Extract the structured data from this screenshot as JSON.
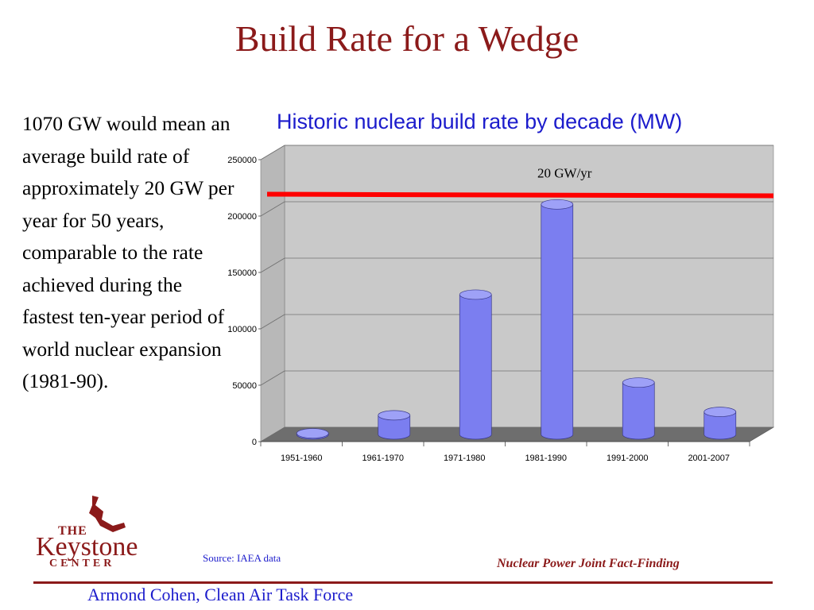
{
  "slide": {
    "title": "Build Rate for a Wedge",
    "body_text": "1070 GW would mean an average build rate of approximately 20 GW per year for 50 years, comparable to the rate achieved during the fastest ten-year period of world nuclear expansion (1981-90).",
    "source": "Source: IAEA data",
    "footer_right": "Nuclear Power Joint Fact-Finding",
    "footer_left": "Armond Cohen, Clean Air Task Force"
  },
  "logo": {
    "the": "THE",
    "name": "Keystone",
    "center": "CENTER"
  },
  "colors": {
    "title": "#8b1a1a",
    "accent_blue": "#1c1ccc",
    "bar": "#7b7ef0",
    "reference_line": "#ff0000"
  },
  "chart_data": {
    "type": "bar",
    "title": "Historic nuclear build rate by decade (MW)",
    "categories": [
      "1951-1960",
      "1961-1970",
      "1971-1980",
      "1981-1990",
      "1991-2000",
      "2001-2007"
    ],
    "values": [
      1000,
      17000,
      124000,
      204000,
      46000,
      20000
    ],
    "ylim": [
      0,
      250000
    ],
    "yticks": [
      0,
      50000,
      100000,
      150000,
      200000,
      250000
    ],
    "grid": true,
    "reference_line": {
      "label": "20 GW/yr",
      "value": 213000
    }
  }
}
